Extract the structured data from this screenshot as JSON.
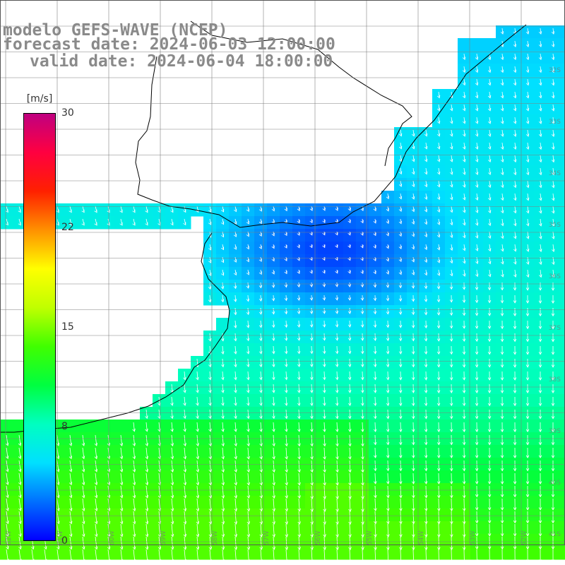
{
  "title": {
    "line1": "modelo GEFS-WAVE (NCEP)",
    "line2": "forecast date: 2024-06-03 12:00:00",
    "line3": "valid date: 2024-06-04 18:00:00"
  },
  "colorbar": {
    "unit": "[m/s]",
    "ticks": [
      "30",
      "22",
      "15",
      "8",
      "0"
    ],
    "tick_values": [
      30,
      22,
      15,
      8,
      0
    ],
    "min": 0,
    "max": 30,
    "colors": [
      "#0000ff",
      "#0070ff",
      "#00e0ff",
      "#00ffc0",
      "#00ff40",
      "#40ff00",
      "#c0ff00",
      "#ffff00",
      "#ff9000",
      "#ff2000",
      "#ff0040",
      "#c00080"
    ]
  },
  "map": {
    "lat_labels": [
      "32S",
      "33S",
      "34S",
      "35S",
      "36S",
      "37S",
      "38S",
      "39S",
      "40S",
      "41S"
    ],
    "lon_labels": [
      "62W",
      "61W",
      "60W",
      "59W",
      "58W",
      "57W",
      "56W",
      "55W",
      "54W",
      "53W",
      "52W",
      "51W"
    ],
    "field": "wind speed (m/s)",
    "land_color": "#ffffff",
    "grid_color": "#808080",
    "coast_color": "#000000",
    "arrow_color": "#ffffff"
  }
}
